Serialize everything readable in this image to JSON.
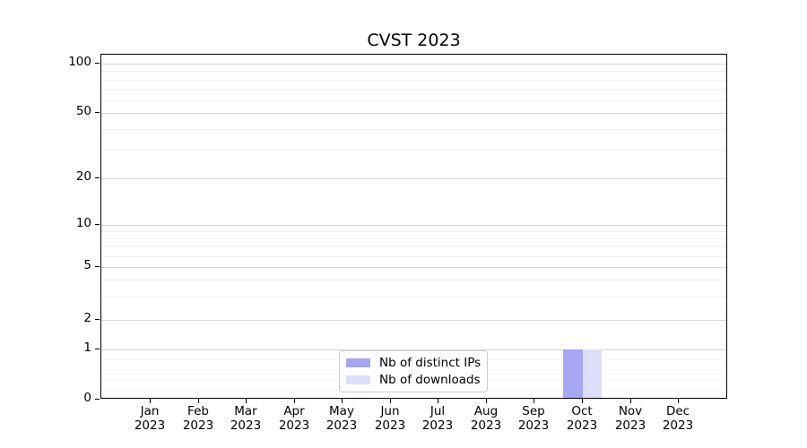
{
  "chart_data": {
    "type": "bar",
    "title": "CVST 2023",
    "categories": [
      "Jan 2023",
      "Feb 2023",
      "Mar 2023",
      "Apr 2023",
      "May 2023",
      "Jun 2023",
      "Jul 2023",
      "Aug 2023",
      "Sep 2023",
      "Oct 2023",
      "Nov 2023",
      "Dec 2023"
    ],
    "series": [
      {
        "name": "Nb of distinct IPs",
        "color": "#a5a7f3",
        "values": [
          0,
          0,
          0,
          0,
          0,
          0,
          0,
          0,
          0,
          1,
          0,
          0
        ]
      },
      {
        "name": "Nb of downloads",
        "color": "#dcdefa",
        "values": [
          0,
          0,
          0,
          0,
          0,
          0,
          0,
          0,
          0,
          1,
          0,
          0
        ]
      }
    ],
    "xlabel": "",
    "ylabel": "",
    "yscale": "symlog",
    "ylim": [
      0,
      100
    ],
    "yticks": [
      0,
      1,
      2,
      5,
      10,
      20,
      50,
      100
    ],
    "grid": "horizontal",
    "legend_position": "lower-center",
    "colors": {
      "background": "#ffffff",
      "spine": "#000000",
      "major_grid": "#d6d6d6",
      "minor_grid": "#eeeeee"
    }
  }
}
